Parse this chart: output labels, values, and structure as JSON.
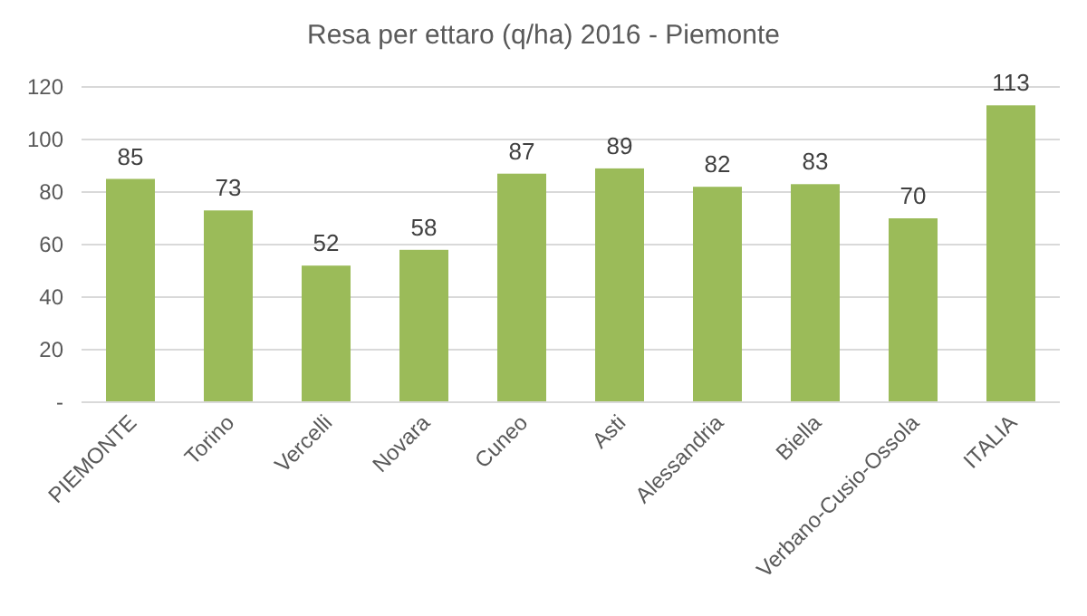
{
  "chart_data": {
    "type": "bar",
    "title": "Resa per ettaro (q/ha) 2016 - Piemonte",
    "categories": [
      "PIEMONTE",
      "Torino",
      "Vercelli",
      "Novara",
      "Cuneo",
      "Asti",
      "Alessandria",
      "Biella",
      "Verbano-Cusio-Ossola",
      "ITALIA"
    ],
    "values": [
      85,
      73,
      52,
      58,
      87,
      89,
      82,
      83,
      70,
      113
    ],
    "color": "#9bbb59",
    "ylim": [
      0,
      120
    ],
    "yticks": [
      {
        "value": 0,
        "label": "-"
      },
      20,
      40,
      60,
      80,
      100,
      120
    ],
    "grid": "y",
    "data_labels": true
  }
}
